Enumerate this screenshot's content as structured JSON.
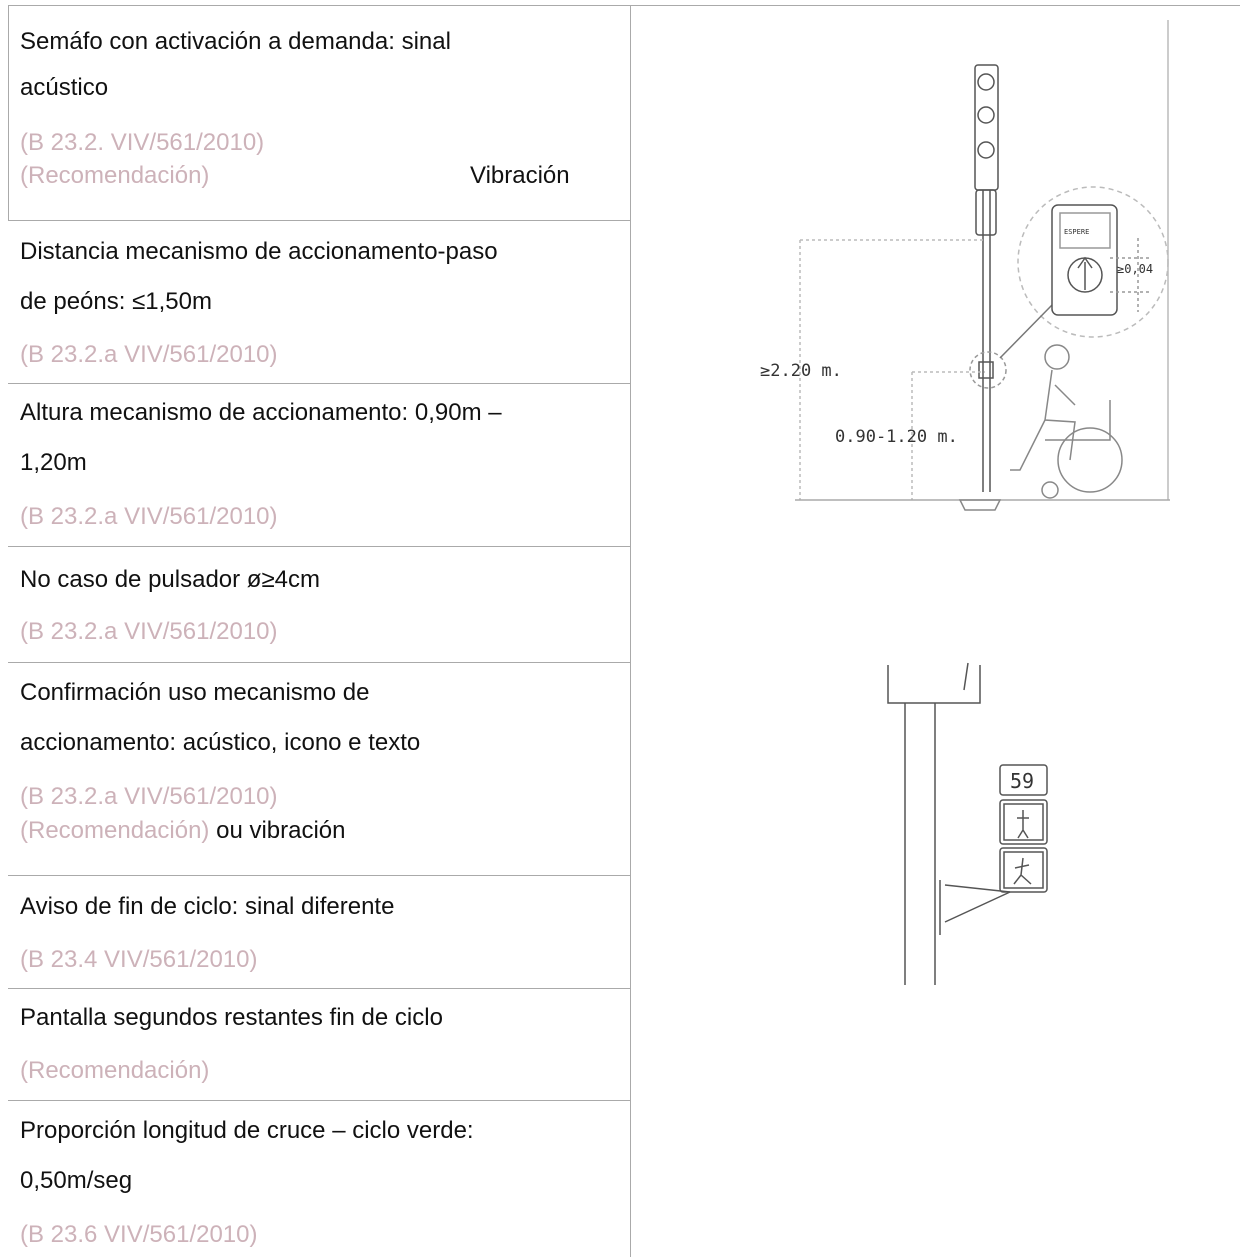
{
  "rows": [
    {
      "lines": [
        "Semáfo con activación a demanda: sinal",
        "acústico"
      ],
      "refs": [
        "(B 23.2. VIV/561/2010)",
        "(Recomendación)"
      ],
      "note": "Vibración"
    },
    {
      "lines": [
        "Distancia mecanismo de accionamento-paso",
        "de peóns: ≤1,50m"
      ],
      "refs": [
        "(B 23.2.a VIV/561/2010)"
      ]
    },
    {
      "lines": [
        "Altura mecanismo de accionamento: 0,90m –",
        "1,20m"
      ],
      "refs": [
        "(B 23.2.a VIV/561/2010)"
      ]
    },
    {
      "lines": [
        "No caso de pulsador ø≥4cm"
      ],
      "refs": [
        "(B 23.2.a VIV/561/2010)"
      ]
    },
    {
      "lines": [
        "Confirmación uso mecanismo de",
        "accionamento: acústico, icono e texto"
      ],
      "refs": [
        "(B 23.2.a VIV/561/2010)",
        "(Recomendación)"
      ],
      "note": "ou vibración"
    },
    {
      "lines": [
        "Aviso de fin de ciclo: sinal diferente"
      ],
      "refs": [
        "(B 23.4 VIV/561/2010)"
      ]
    },
    {
      "lines": [
        "Pantalla segundos restantes fin de ciclo"
      ],
      "refs": [
        "(Recomendación)"
      ]
    },
    {
      "lines": [
        "Proporción longitud de cruce – ciclo verde:",
        "0,50m/seg"
      ],
      "refs": [
        "(B 23.6 VIV/561/2010)"
      ]
    }
  ],
  "figures": {
    "pushbutton": {
      "height_total": "≥2.20 m.",
      "height_button": "0.90-1.20 m.",
      "diameter": "≥0,04",
      "screen": "ESPERE"
    },
    "countdown": {
      "seconds": "59"
    }
  }
}
